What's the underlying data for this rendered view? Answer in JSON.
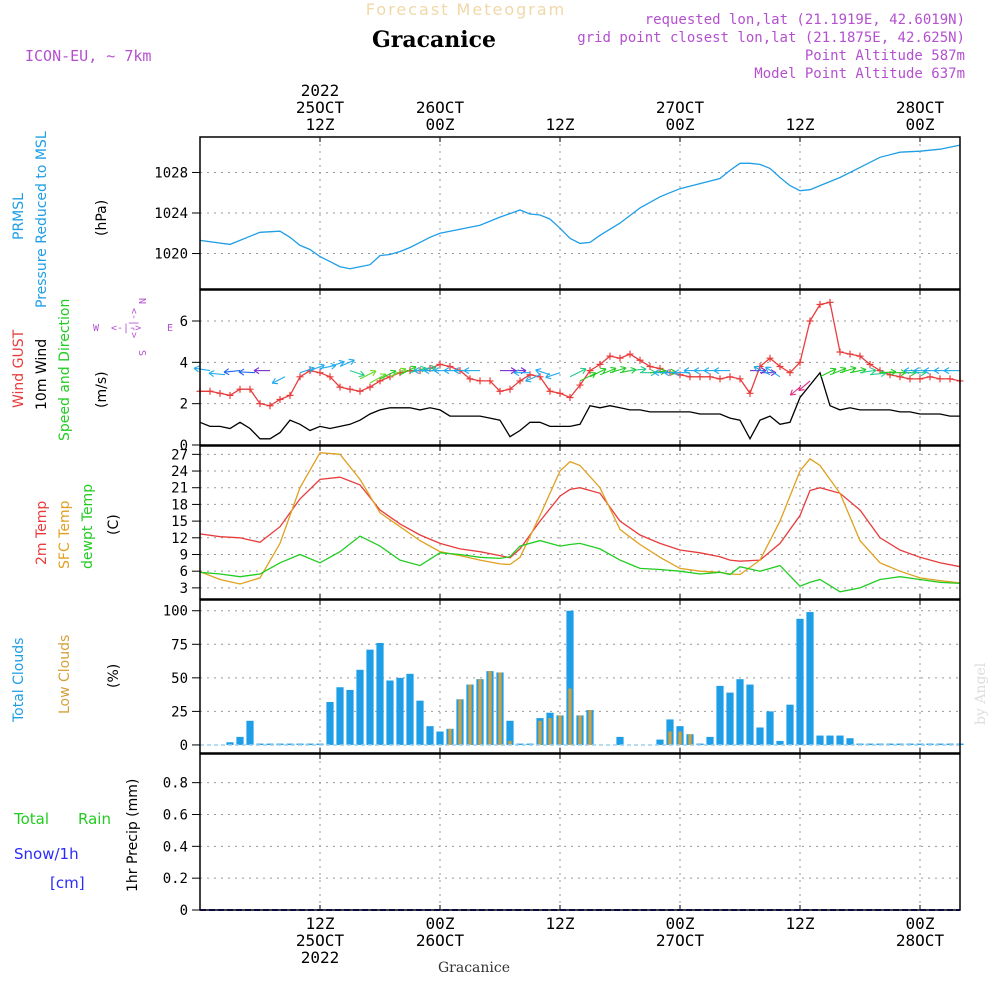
{
  "header": {
    "title": "Forecast Meteogram",
    "location": "Gracanice",
    "model": "ICON-EU, ~ 7km",
    "requested": "requested lon,lat (21.1919E, 42.6019N)",
    "grid_point": "grid point closest lon,lat (21.1875E, 42.625N)",
    "point_altitude": "Point Altitude 587m",
    "model_altitude": "Model Point Altitude 637m",
    "footer_location": "Gracanice",
    "watermark": "by Angel"
  },
  "colors": {
    "pressure": "#1e9ee6",
    "gust": "#e83c3c",
    "wind": "#000000",
    "temp2m": "#e83c3c",
    "sfc": "#e0a020",
    "dewpt": "#22cc22",
    "total_cloud": "#1e9ee6",
    "low_cloud": "#d4a03a",
    "purple": "#b450d0",
    "rain": "#22cc22",
    "snow": "#2a2aff"
  },
  "time_axis": {
    "top_labels": [
      {
        "hour": 12,
        "lines": [
          "2022",
          "25OCT",
          "12Z"
        ]
      },
      {
        "hour": 24,
        "lines": [
          "26OCT",
          "00Z"
        ]
      },
      {
        "hour": 36,
        "lines": [
          "12Z"
        ]
      },
      {
        "hour": 48,
        "lines": [
          "27OCT",
          "00Z"
        ]
      },
      {
        "hour": 60,
        "lines": [
          "12Z"
        ]
      },
      {
        "hour": 72,
        "lines": [
          "28OCT",
          "00Z"
        ]
      }
    ],
    "bottom_labels": [
      {
        "hour": 12,
        "lines": [
          "12Z",
          "25OCT",
          "2022"
        ]
      },
      {
        "hour": 24,
        "lines": [
          "00Z",
          "26OCT"
        ]
      },
      {
        "hour": 36,
        "lines": [
          "12Z"
        ]
      },
      {
        "hour": 48,
        "lines": [
          "00Z",
          "27OCT"
        ]
      },
      {
        "hour": 60,
        "lines": [
          "12Z"
        ]
      },
      {
        "hour": 72,
        "lines": [
          "00Z",
          "28OCT"
        ]
      }
    ]
  },
  "panels": {
    "pressure": {
      "label_a": "PRMSL",
      "label_b": "Pressure Reduced to MSL",
      "unit": "(hPa)"
    },
    "wind": {
      "label_gust": "Wind GUST",
      "label_wind": "10m Wind",
      "label_dir": "Speed and Direction",
      "unit": "(m/s)",
      "compass": {
        "n": "N",
        "s": "S",
        "w": "W",
        "e": "E",
        "arrow": "<-|->"
      }
    },
    "temp": {
      "label_a": "2m Temp",
      "label_b": "SFC Temp",
      "label_c": "dewpt Temp",
      "unit": "(C)"
    },
    "cloud": {
      "label_a": "Total Clouds",
      "label_b": "Low Clouds",
      "unit": "(%)"
    },
    "precip": {
      "label_rain_a": "Total",
      "label_rain_b": "Rain",
      "label_snow": "Snow/1h",
      "label_cm": "[cm]",
      "unit_label": "1hr Precip (mm)"
    }
  },
  "chart_data": [
    {
      "type": "line",
      "title": "PRMSL Pressure Reduced to MSL",
      "ylabel": "(hPa)",
      "ylim": [
        1016.5,
        1031.5
      ],
      "yticks": [
        1020,
        1024,
        1028
      ],
      "x": [
        0,
        3,
        5,
        6,
        8,
        9,
        10,
        11,
        12,
        13,
        14,
        15,
        16,
        17,
        18,
        19,
        20,
        21,
        22,
        23,
        24,
        26,
        28,
        30,
        32,
        33,
        34,
        35,
        36,
        37,
        38,
        39,
        40,
        42,
        44,
        46,
        47,
        48,
        50,
        52,
        53,
        54,
        55,
        56,
        57,
        58,
        59,
        60,
        61,
        62,
        64,
        66,
        68,
        70,
        72,
        74,
        76
      ],
      "series": [
        {
          "name": "PRMSL",
          "values": [
            1021.3,
            1020.9,
            1021.7,
            1022.1,
            1022.2,
            1021.6,
            1020.8,
            1020.4,
            1019.7,
            1019.2,
            1018.7,
            1018.5,
            1018.7,
            1018.9,
            1019.8,
            1019.9,
            1020.2,
            1020.6,
            1021.1,
            1021.6,
            1022.0,
            1022.4,
            1022.8,
            1023.6,
            1024.3,
            1023.9,
            1023.8,
            1023.4,
            1022.5,
            1021.5,
            1021.0,
            1021.1,
            1021.8,
            1023.0,
            1024.5,
            1025.6,
            1026.0,
            1026.4,
            1026.9,
            1027.4,
            1028.2,
            1028.9,
            1028.9,
            1028.8,
            1028.4,
            1027.5,
            1026.7,
            1026.2,
            1026.3,
            1026.7,
            1027.5,
            1028.5,
            1029.5,
            1030.0,
            1030.1,
            1030.3,
            1030.7
          ]
        }
      ]
    },
    {
      "type": "line",
      "title": "Wind GUST / 10m Wind Speed and Direction",
      "ylabel": "(m/s)",
      "ylim": [
        0,
        7.5
      ],
      "yticks": [
        0,
        2,
        4,
        6
      ],
      "x": [
        0,
        1,
        2,
        3,
        4,
        5,
        6,
        7,
        8,
        9,
        10,
        11,
        12,
        13,
        14,
        15,
        16,
        17,
        18,
        19,
        20,
        21,
        22,
        23,
        24,
        25,
        26,
        27,
        28,
        29,
        30,
        31,
        32,
        33,
        34,
        35,
        36,
        37,
        38,
        39,
        40,
        41,
        42,
        43,
        44,
        45,
        46,
        47,
        48,
        49,
        50,
        51,
        52,
        53,
        54,
        55,
        56,
        57,
        58,
        59,
        60,
        61,
        62,
        63,
        64,
        65,
        66,
        67,
        68,
        69,
        70,
        71,
        72,
        73,
        74,
        75,
        76
      ],
      "series": [
        {
          "name": "Wind GUST",
          "values": [
            2.6,
            2.6,
            2.5,
            2.4,
            2.7,
            2.7,
            2.0,
            1.9,
            2.2,
            2.4,
            3.3,
            3.6,
            3.5,
            3.3,
            2.8,
            2.7,
            2.6,
            2.8,
            3.1,
            3.3,
            3.5,
            3.6,
            3.6,
            3.7,
            3.9,
            3.8,
            3.6,
            3.2,
            3.1,
            3.1,
            2.6,
            2.7,
            3.1,
            3.4,
            3.3,
            2.6,
            2.5,
            2.3,
            2.9,
            3.6,
            3.9,
            4.3,
            4.2,
            4.4,
            4.1,
            3.8,
            3.7,
            3.5,
            3.4,
            3.3,
            3.3,
            3.3,
            3.2,
            3.3,
            3.2,
            2.5,
            3.8,
            4.2,
            3.8,
            3.5,
            4.0,
            6.0,
            6.8,
            6.9,
            4.5,
            4.4,
            4.3,
            3.9,
            3.6,
            3.4,
            3.3,
            3.2,
            3.2,
            3.3,
            3.2,
            3.2,
            3.1
          ]
        },
        {
          "name": "10m Wind",
          "values": [
            1.1,
            0.9,
            0.9,
            0.8,
            1.1,
            0.8,
            0.3,
            0.3,
            0.6,
            1.2,
            1.0,
            0.7,
            0.9,
            0.8,
            0.9,
            1.0,
            1.2,
            1.5,
            1.7,
            1.8,
            1.8,
            1.8,
            1.7,
            1.8,
            1.7,
            1.4,
            1.4,
            1.4,
            1.4,
            1.3,
            1.2,
            0.4,
            0.7,
            1.1,
            1.1,
            0.9,
            0.9,
            0.9,
            1.0,
            1.9,
            1.8,
            1.9,
            1.8,
            1.7,
            1.7,
            1.6,
            1.6,
            1.6,
            1.6,
            1.6,
            1.5,
            1.5,
            1.5,
            1.3,
            1.2,
            0.3,
            1.2,
            1.4,
            1.0,
            1.1,
            2.3,
            2.9,
            3.5,
            1.9,
            1.7,
            1.8,
            1.7,
            1.7,
            1.7,
            1.7,
            1.6,
            1.6,
            1.5,
            1.5,
            1.5,
            1.4,
            1.4
          ]
        }
      ]
    },
    {
      "type": "line",
      "title": "2m Temp / SFC Temp / dewpt Temp",
      "ylabel": "(C)",
      "ylim": [
        1,
        28.5
      ],
      "yticks": [
        3,
        6,
        9,
        12,
        15,
        18,
        21,
        24,
        27
      ],
      "x": [
        0,
        2,
        4,
        6,
        8,
        10,
        12,
        14,
        16,
        18,
        20,
        22,
        24,
        26,
        28,
        30,
        31,
        32,
        34,
        36,
        37,
        38,
        40,
        42,
        44,
        46,
        48,
        50,
        52,
        53,
        54,
        56,
        58,
        60,
        61,
        62,
        64,
        66,
        68,
        70,
        72,
        74,
        76
      ],
      "series": [
        {
          "name": "2m Temp",
          "values": [
            12.7,
            12.2,
            12.0,
            11.2,
            14.0,
            19.0,
            22.5,
            22.9,
            21.5,
            17.0,
            14.5,
            12.5,
            11.0,
            10.0,
            9.5,
            8.8,
            8.4,
            10.0,
            15.0,
            19.5,
            20.7,
            21.0,
            20.0,
            15.0,
            12.5,
            11.0,
            9.8,
            9.3,
            8.6,
            8.0,
            7.8,
            8.0,
            11.0,
            16.0,
            20.5,
            21.0,
            20.0,
            17.0,
            12.0,
            9.8,
            8.5,
            7.5,
            6.8
          ]
        },
        {
          "name": "SFC Temp",
          "values": [
            5.9,
            4.5,
            3.7,
            4.8,
            11.0,
            21.0,
            27.3,
            27.0,
            22.5,
            16.5,
            14.0,
            11.5,
            9.5,
            8.8,
            8.0,
            7.3,
            7.2,
            8.5,
            16.0,
            24.0,
            25.7,
            25.0,
            21.0,
            13.5,
            10.8,
            8.5,
            6.5,
            6.0,
            5.8,
            5.5,
            5.4,
            8.0,
            15.0,
            24.0,
            26.2,
            25.0,
            20.0,
            11.5,
            7.5,
            6.0,
            4.8,
            4.3,
            3.9
          ]
        },
        {
          "name": "dewpt Temp",
          "values": [
            5.8,
            5.5,
            5.0,
            5.5,
            7.5,
            9.0,
            7.5,
            9.5,
            12.3,
            10.5,
            8.0,
            7.0,
            9.3,
            9.0,
            8.5,
            8.3,
            8.6,
            10.5,
            11.5,
            10.5,
            10.8,
            11.0,
            10.0,
            8.0,
            6.5,
            6.3,
            6.0,
            5.5,
            5.8,
            5.4,
            6.8,
            6.0,
            7.0,
            3.3,
            4.0,
            4.5,
            2.3,
            3.0,
            4.5,
            5.0,
            4.5,
            4.0,
            3.8
          ]
        }
      ]
    },
    {
      "type": "bar",
      "title": "Total Clouds / Low Clouds",
      "ylabel": "(%)",
      "ylim": [
        -6,
        108
      ],
      "yticks": [
        0,
        25,
        50,
        75,
        100
      ],
      "x": [
        0,
        1,
        2,
        3,
        4,
        5,
        6,
        7,
        8,
        9,
        10,
        11,
        12,
        13,
        14,
        15,
        16,
        17,
        18,
        19,
        20,
        21,
        22,
        23,
        24,
        25,
        26,
        27,
        28,
        29,
        30,
        31,
        32,
        33,
        34,
        35,
        36,
        37,
        38,
        39,
        40,
        41,
        42,
        43,
        44,
        45,
        46,
        47,
        48,
        49,
        50,
        51,
        52,
        53,
        54,
        55,
        56,
        57,
        58,
        59,
        60,
        61,
        62,
        63,
        64,
        65,
        66,
        67,
        68,
        69,
        70,
        71,
        72,
        73,
        74,
        75,
        76
      ],
      "series": [
        {
          "name": "Total Clouds",
          "values": [
            0,
            0,
            0,
            2,
            6,
            18,
            1,
            1,
            1,
            1,
            1,
            1,
            1,
            32,
            43,
            41,
            56,
            71,
            76,
            48,
            50,
            53,
            33,
            14,
            10,
            12,
            34,
            45,
            49,
            55,
            54,
            18,
            1,
            1,
            20,
            24,
            22,
            100,
            22,
            26,
            0,
            0,
            6,
            0,
            0,
            0,
            4,
            19,
            14,
            8,
            1,
            6,
            44,
            39,
            49,
            45,
            13,
            25,
            3,
            30,
            94,
            99,
            7,
            7,
            7,
            5,
            1,
            1,
            1,
            1,
            1,
            1,
            1,
            1,
            1,
            1,
            1
          ]
        },
        {
          "name": "Low Clouds",
          "values": [
            0,
            0,
            0,
            0,
            0,
            0,
            0,
            0,
            0,
            0,
            0,
            0,
            0,
            0,
            0,
            0,
            0,
            0,
            0,
            0,
            0,
            0,
            0,
            0,
            0,
            12,
            34,
            45,
            49,
            55,
            54,
            3,
            0,
            0,
            18,
            20,
            22,
            42,
            22,
            26,
            0,
            0,
            0,
            0,
            0,
            0,
            0,
            10,
            10,
            8,
            0,
            0,
            0,
            0,
            0,
            0,
            0,
            0,
            0,
            0,
            0,
            0,
            0,
            0,
            0,
            0,
            0,
            0,
            0,
            0,
            0,
            0,
            0,
            0,
            0,
            0,
            0
          ]
        }
      ]
    },
    {
      "type": "line",
      "title": "1hr Precip",
      "ylabel": "1hr Precip (mm)",
      "ylim": [
        0,
        0.98
      ],
      "yticks": [
        0,
        0.2,
        0.4,
        0.6,
        0.8
      ],
      "x": [
        0,
        76
      ],
      "series": [
        {
          "name": "Total Rain",
          "values": [
            0,
            0
          ]
        },
        {
          "name": "Snow/1h",
          "values": [
            0,
            0
          ]
        }
      ]
    }
  ]
}
